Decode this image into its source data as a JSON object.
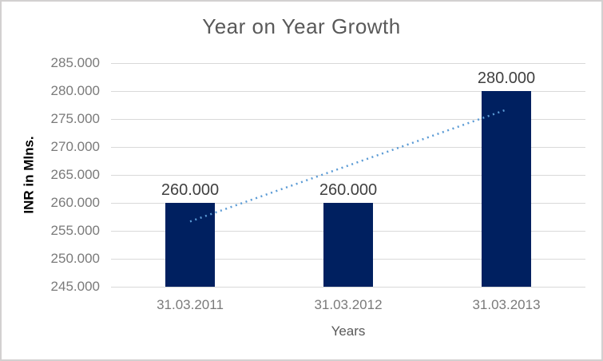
{
  "chart_data": {
    "type": "bar",
    "title": "Year on Year Growth",
    "xlabel": "Years",
    "ylabel": "INR in Mlns.",
    "categories": [
      "31.03.2011",
      "31.03.2012",
      "31.03.2013"
    ],
    "values": [
      260,
      260,
      280
    ],
    "value_labels": [
      "260.000",
      "260.000",
      "280.000"
    ],
    "ytick_labels": [
      "285.000",
      "280.000",
      "275.000",
      "270.000",
      "265.000",
      "260.000",
      "255.000",
      "250.000",
      "245.000"
    ],
    "ylim": [
      245,
      285
    ],
    "ytick_step": 5,
    "grid": true,
    "legend": "none",
    "trendline": {
      "type": "linear",
      "style": "dotted",
      "start_value": 256.67,
      "end_value": 276.67,
      "color": "#5B9BD5"
    },
    "colors": {
      "bar": "#002060",
      "gridline": "#D9D9D9",
      "axis_line": "#D9D9D9",
      "tick_label": "#7A7A7A",
      "title": "#595959",
      "data_label": "#404040",
      "border": "#D2D0D0",
      "background": "#FFFFFF"
    }
  }
}
